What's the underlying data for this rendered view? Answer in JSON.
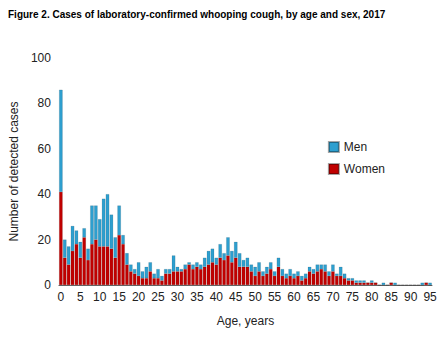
{
  "chart_data": {
    "type": "bar",
    "title": "Figure 2. Cases of laboratory-confirmed whooping cough, by age and sex, 2017",
    "xlabel": "Age, years",
    "ylabel": "Number of detected cases",
    "stacked": true,
    "grid": false,
    "legend": "upper right",
    "categories": [
      "0",
      null,
      null,
      null,
      null,
      "5",
      null,
      null,
      null,
      null,
      "10",
      null,
      null,
      null,
      null,
      "15",
      null,
      null,
      null,
      null,
      "20",
      null,
      null,
      null,
      null,
      "25",
      null,
      null,
      null,
      null,
      "30",
      null,
      null,
      null,
      null,
      "35",
      null,
      null,
      null,
      null,
      "40",
      null,
      null,
      null,
      null,
      "45",
      null,
      null,
      null,
      null,
      "50",
      null,
      null,
      null,
      null,
      "55",
      null,
      null,
      null,
      null,
      "60",
      null,
      null,
      null,
      null,
      "65",
      null,
      null,
      null,
      null,
      "70",
      null,
      null,
      null,
      null,
      "75",
      null,
      null,
      null,
      null,
      "80",
      null,
      null,
      null,
      null,
      "85",
      null,
      null,
      null,
      null,
      "90",
      null,
      null,
      null,
      null,
      "95"
    ],
    "series": [
      {
        "name": "Women",
        "color": "#c00000",
        "values": [
          41,
          12,
          9,
          15,
          18,
          12,
          21,
          11,
          18,
          20,
          17,
          17,
          17,
          16,
          12,
          22,
          18,
          9,
          6,
          5,
          4,
          3,
          3,
          6,
          3,
          3,
          2,
          5,
          5,
          6,
          6,
          6,
          7,
          9,
          7,
          8,
          7,
          8,
          9,
          10,
          9,
          12,
          11,
          13,
          10,
          12,
          8,
          8,
          8,
          6,
          4,
          6,
          4,
          5,
          7,
          4,
          8,
          4,
          3,
          4,
          3,
          4,
          2,
          3,
          6,
          5,
          6,
          7,
          6,
          4,
          6,
          4,
          4,
          3,
          2,
          2,
          1,
          1,
          1,
          1,
          1,
          1,
          0,
          0,
          0,
          1,
          0,
          0,
          0,
          0,
          0,
          0,
          0,
          0,
          1,
          0
        ]
      },
      {
        "name": "Men",
        "color": "#2e9fcf",
        "values": [
          45,
          8,
          8,
          11,
          6,
          7,
          4,
          5,
          17,
          15,
          12,
          21,
          23,
          15,
          9,
          13,
          4,
          5,
          3,
          2,
          6,
          3,
          5,
          4,
          2,
          4,
          2,
          2,
          2,
          7,
          2,
          1,
          2,
          1,
          2,
          2,
          2,
          4,
          6,
          6,
          3,
          6,
          3,
          8,
          5,
          7,
          6,
          3,
          4,
          3,
          4,
          4,
          2,
          3,
          3,
          2,
          4,
          3,
          2,
          3,
          2,
          2,
          2,
          2,
          2,
          2,
          3,
          2,
          3,
          2,
          3,
          1,
          4,
          2,
          1,
          1,
          1,
          1,
          1,
          0,
          1,
          0,
          0,
          1,
          0,
          0,
          1,
          0,
          0,
          0,
          0,
          0,
          0,
          1,
          0,
          1
        ]
      }
    ],
    "ylim": [
      0,
      100
    ],
    "yticks": [
      0,
      20,
      40,
      60,
      80,
      100
    ]
  }
}
